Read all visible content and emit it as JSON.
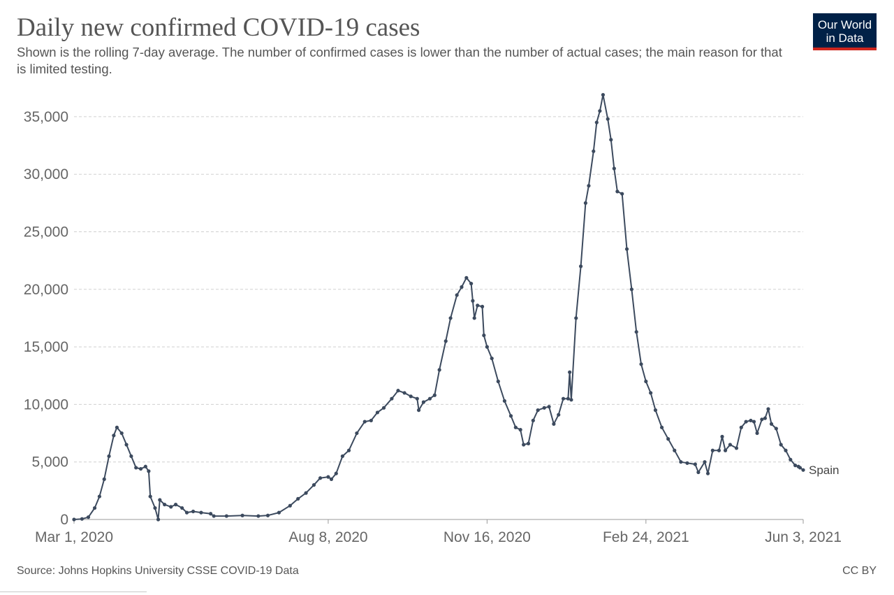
{
  "title": "Daily new confirmed COVID-19 cases",
  "subtitle": "Shown is the rolling 7-day average. The number of confirmed cases is lower than the number of actual cases; the main reason for that is limited testing.",
  "logo": {
    "line1": "Our World",
    "line2": "in Data"
  },
  "source": "Source: Johns Hopkins University CSSE COVID-19 Data",
  "license": "CC BY",
  "colors": {
    "series": "#3c4a5e",
    "grid": "#d0d0d0",
    "text": "#555555",
    "logo_bg": "#002147",
    "logo_accent": "#ce261e"
  },
  "chart_data": {
    "type": "line",
    "title": "Daily new confirmed COVID-19 cases",
    "xlabel": "",
    "ylabel": "",
    "ylim": [
      0,
      37000
    ],
    "xlim": [
      "2020-03-01",
      "2021-06-03"
    ],
    "yticks": [
      0,
      5000,
      10000,
      15000,
      20000,
      25000,
      30000,
      35000
    ],
    "ytick_labels": [
      "0",
      "5,000",
      "10,000",
      "15,000",
      "20,000",
      "25,000",
      "30,000",
      "35,000"
    ],
    "xticks": [
      "2020-03-01",
      "2020-08-08",
      "2020-11-16",
      "2021-02-24",
      "2021-06-03"
    ],
    "xtick_labels": [
      "Mar 1, 2020",
      "Aug 8, 2020",
      "Nov 16, 2020",
      "Feb 24, 2021",
      "Jun 3, 2021"
    ],
    "grid": "horizontal dashed",
    "series": [
      {
        "name": "Spain",
        "color": "#3c4a5e",
        "points": [
          [
            "2020-03-01",
            0
          ],
          [
            "2020-03-06",
            50
          ],
          [
            "2020-03-10",
            200
          ],
          [
            "2020-03-14",
            1000
          ],
          [
            "2020-03-17",
            2000
          ],
          [
            "2020-03-20",
            3500
          ],
          [
            "2020-03-23",
            5500
          ],
          [
            "2020-03-26",
            7300
          ],
          [
            "2020-03-28",
            8000
          ],
          [
            "2020-03-31",
            7500
          ],
          [
            "2020-04-03",
            6500
          ],
          [
            "2020-04-06",
            5500
          ],
          [
            "2020-04-09",
            4500
          ],
          [
            "2020-04-12",
            4400
          ],
          [
            "2020-04-15",
            4600
          ],
          [
            "2020-04-17",
            4200
          ],
          [
            "2020-04-18",
            2000
          ],
          [
            "2020-04-21",
            1000
          ],
          [
            "2020-04-23",
            0
          ],
          [
            "2020-04-24",
            1700
          ],
          [
            "2020-04-27",
            1300
          ],
          [
            "2020-05-01",
            1100
          ],
          [
            "2020-05-04",
            1300
          ],
          [
            "2020-05-08",
            1000
          ],
          [
            "2020-05-11",
            600
          ],
          [
            "2020-05-15",
            700
          ],
          [
            "2020-05-20",
            600
          ],
          [
            "2020-05-26",
            500
          ],
          [
            "2020-05-28",
            300
          ],
          [
            "2020-06-05",
            300
          ],
          [
            "2020-06-15",
            350
          ],
          [
            "2020-06-25",
            300
          ],
          [
            "2020-07-01",
            350
          ],
          [
            "2020-07-08",
            600
          ],
          [
            "2020-07-15",
            1200
          ],
          [
            "2020-07-20",
            1800
          ],
          [
            "2020-07-25",
            2300
          ],
          [
            "2020-07-30",
            3000
          ],
          [
            "2020-08-03",
            3600
          ],
          [
            "2020-08-08",
            3700
          ],
          [
            "2020-08-10",
            3500
          ],
          [
            "2020-08-13",
            4000
          ],
          [
            "2020-08-17",
            5500
          ],
          [
            "2020-08-21",
            6000
          ],
          [
            "2020-08-26",
            7500
          ],
          [
            "2020-08-31",
            8500
          ],
          [
            "2020-09-04",
            8600
          ],
          [
            "2020-09-08",
            9300
          ],
          [
            "2020-09-12",
            9700
          ],
          [
            "2020-09-17",
            10500
          ],
          [
            "2020-09-21",
            11200
          ],
          [
            "2020-09-25",
            11000
          ],
          [
            "2020-09-29",
            10700
          ],
          [
            "2020-10-03",
            10500
          ],
          [
            "2020-10-04",
            9500
          ],
          [
            "2020-10-07",
            10200
          ],
          [
            "2020-10-11",
            10500
          ],
          [
            "2020-10-14",
            10800
          ],
          [
            "2020-10-17",
            13000
          ],
          [
            "2020-10-21",
            15500
          ],
          [
            "2020-10-24",
            17500
          ],
          [
            "2020-10-28",
            19500
          ],
          [
            "2020-10-31",
            20200
          ],
          [
            "2020-11-03",
            21000
          ],
          [
            "2020-11-06",
            20500
          ],
          [
            "2020-11-07",
            19000
          ],
          [
            "2020-11-08",
            17500
          ],
          [
            "2020-11-10",
            18600
          ],
          [
            "2020-11-13",
            18500
          ],
          [
            "2020-11-14",
            16000
          ],
          [
            "2020-11-16",
            15000
          ],
          [
            "2020-11-19",
            14000
          ],
          [
            "2020-11-23",
            12000
          ],
          [
            "2020-11-27",
            10300
          ],
          [
            "2020-12-01",
            9000
          ],
          [
            "2020-12-04",
            8000
          ],
          [
            "2020-12-07",
            7800
          ],
          [
            "2020-12-09",
            6500
          ],
          [
            "2020-12-12",
            6600
          ],
          [
            "2020-12-15",
            8600
          ],
          [
            "2020-12-18",
            9500
          ],
          [
            "2020-12-22",
            9700
          ],
          [
            "2020-12-25",
            9800
          ],
          [
            "2020-12-28",
            8300
          ],
          [
            "2020-12-31",
            9100
          ],
          [
            "2021-01-03",
            10500
          ],
          [
            "2021-01-06",
            10500
          ],
          [
            "2021-01-07",
            12800
          ],
          [
            "2021-01-08",
            10400
          ],
          [
            "2021-01-11",
            17500
          ],
          [
            "2021-01-14",
            22000
          ],
          [
            "2021-01-17",
            27500
          ],
          [
            "2021-01-19",
            29000
          ],
          [
            "2021-01-22",
            32000
          ],
          [
            "2021-01-24",
            34500
          ],
          [
            "2021-01-26",
            35500
          ],
          [
            "2021-01-28",
            36900
          ],
          [
            "2021-01-31",
            34800
          ],
          [
            "2021-02-02",
            33000
          ],
          [
            "2021-02-04",
            30500
          ],
          [
            "2021-02-06",
            28500
          ],
          [
            "2021-02-09",
            28300
          ],
          [
            "2021-02-12",
            23500
          ],
          [
            "2021-02-15",
            20000
          ],
          [
            "2021-02-18",
            16300
          ],
          [
            "2021-02-21",
            13500
          ],
          [
            "2021-02-24",
            12000
          ],
          [
            "2021-02-27",
            11000
          ],
          [
            "2021-03-02",
            9500
          ],
          [
            "2021-03-06",
            8000
          ],
          [
            "2021-03-10",
            7000
          ],
          [
            "2021-03-14",
            6000
          ],
          [
            "2021-03-18",
            5000
          ],
          [
            "2021-03-22",
            4900
          ],
          [
            "2021-03-27",
            4800
          ],
          [
            "2021-03-29",
            4100
          ],
          [
            "2021-04-02",
            5000
          ],
          [
            "2021-04-04",
            4000
          ],
          [
            "2021-04-07",
            6000
          ],
          [
            "2021-04-11",
            6000
          ],
          [
            "2021-04-13",
            7200
          ],
          [
            "2021-04-15",
            6000
          ],
          [
            "2021-04-18",
            6500
          ],
          [
            "2021-04-22",
            6200
          ],
          [
            "2021-04-25",
            8000
          ],
          [
            "2021-04-28",
            8500
          ],
          [
            "2021-05-01",
            8600
          ],
          [
            "2021-05-03",
            8500
          ],
          [
            "2021-05-05",
            7500
          ],
          [
            "2021-05-08",
            8700
          ],
          [
            "2021-05-10",
            8800
          ],
          [
            "2021-05-12",
            9600
          ],
          [
            "2021-05-14",
            8300
          ],
          [
            "2021-05-17",
            7900
          ],
          [
            "2021-05-20",
            6500
          ],
          [
            "2021-05-23",
            6000
          ],
          [
            "2021-05-26",
            5200
          ],
          [
            "2021-05-29",
            4700
          ],
          [
            "2021-05-31",
            4600
          ],
          [
            "2021-06-01",
            4500
          ],
          [
            "2021-06-03",
            4300
          ]
        ]
      }
    ]
  }
}
